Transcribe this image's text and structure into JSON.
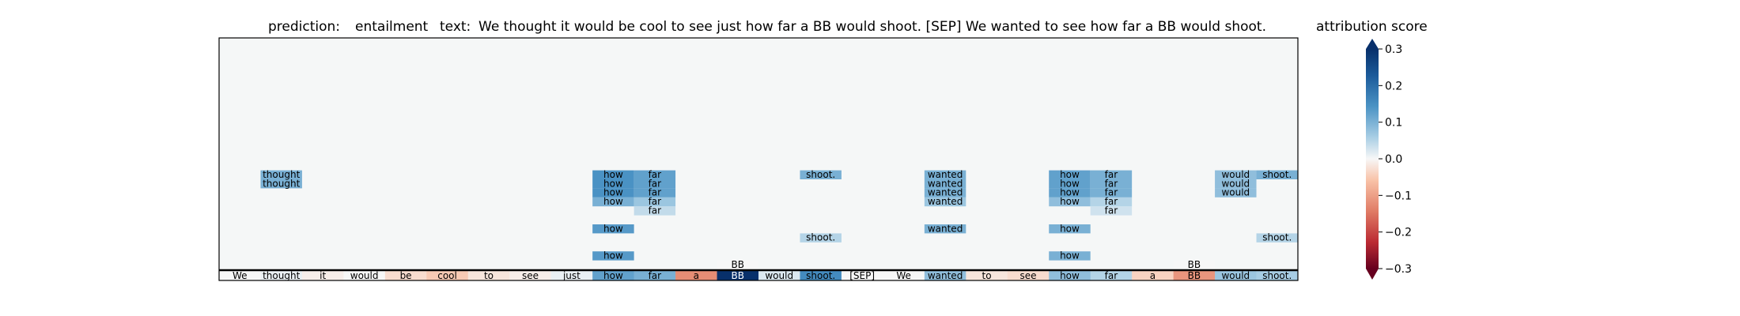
{
  "chart_data": {
    "type": "heatmap",
    "title": {
      "prediction_label": "prediction:",
      "prediction_value": "entailment",
      "text_label": "text:",
      "text_value": "We thought it would be cool to see just how far a BB would shoot. [SEP] We wanted to see how far a BB would shoot."
    },
    "tokens": [
      "We",
      "thought",
      "it",
      "would",
      "be",
      "cool",
      "to",
      "see",
      "just",
      "how",
      "far",
      "a",
      "BB",
      "would",
      "shoot.",
      "[SEP]",
      "We",
      "wanted",
      "to",
      "see",
      "how",
      "far",
      "a",
      "BB",
      "would",
      "shoot."
    ],
    "token_scores": [
      0.0,
      0.01,
      -0.01,
      0.0,
      -0.03,
      -0.05,
      -0.02,
      -0.01,
      0.01,
      0.12,
      0.1,
      -0.12,
      0.3,
      0.02,
      0.15,
      0.0,
      0.0,
      0.08,
      -0.02,
      -0.03,
      0.08,
      0.05,
      -0.04,
      -0.11,
      0.07,
      0.06
    ],
    "layer_rows": 26,
    "layer_cells": [
      {
        "row": 1,
        "col": 12,
        "label": "BB",
        "score": 0.0
      },
      {
        "row": 1,
        "col": 23,
        "label": "BB",
        "score": 0.0
      },
      {
        "row": 2,
        "col": 9,
        "label": "how",
        "score": 0.13
      },
      {
        "row": 2,
        "col": 20,
        "label": "how",
        "score": 0.1
      },
      {
        "row": 4,
        "col": 14,
        "label": "shoot.",
        "score": 0.05
      },
      {
        "row": 4,
        "col": 25,
        "label": "shoot.",
        "score": 0.05
      },
      {
        "row": 5,
        "col": 9,
        "label": "how",
        "score": 0.13
      },
      {
        "row": 5,
        "col": 17,
        "label": "wanted",
        "score": 0.1
      },
      {
        "row": 5,
        "col": 20,
        "label": "how",
        "score": 0.1
      },
      {
        "row": 7,
        "col": 10,
        "label": "far",
        "score": 0.04
      },
      {
        "row": 7,
        "col": 21,
        "label": "far",
        "score": 0.03
      },
      {
        "row": 8,
        "col": 9,
        "label": "how",
        "score": 0.1
      },
      {
        "row": 8,
        "col": 10,
        "label": "far",
        "score": 0.07
      },
      {
        "row": 8,
        "col": 17,
        "label": "wanted",
        "score": 0.07
      },
      {
        "row": 8,
        "col": 20,
        "label": "how",
        "score": 0.08
      },
      {
        "row": 8,
        "col": 21,
        "label": "far",
        "score": 0.05
      },
      {
        "row": 9,
        "col": 9,
        "label": "how",
        "score": 0.14
      },
      {
        "row": 9,
        "col": 10,
        "label": "far",
        "score": 0.12
      },
      {
        "row": 9,
        "col": 17,
        "label": "wanted",
        "score": 0.1
      },
      {
        "row": 9,
        "col": 20,
        "label": "how",
        "score": 0.12
      },
      {
        "row": 9,
        "col": 21,
        "label": "far",
        "score": 0.1
      },
      {
        "row": 9,
        "col": 24,
        "label": "would",
        "score": 0.08
      },
      {
        "row": 10,
        "col": 1,
        "label": "thought",
        "score": 0.1
      },
      {
        "row": 10,
        "col": 9,
        "label": "how",
        "score": 0.14
      },
      {
        "row": 10,
        "col": 10,
        "label": "far",
        "score": 0.12
      },
      {
        "row": 10,
        "col": 17,
        "label": "wanted",
        "score": 0.1
      },
      {
        "row": 10,
        "col": 20,
        "label": "how",
        "score": 0.12
      },
      {
        "row": 10,
        "col": 21,
        "label": "far",
        "score": 0.1
      },
      {
        "row": 10,
        "col": 24,
        "label": "would",
        "score": 0.08
      },
      {
        "row": 11,
        "col": 1,
        "label": "thought",
        "score": 0.1
      },
      {
        "row": 11,
        "col": 9,
        "label": "how",
        "score": 0.14
      },
      {
        "row": 11,
        "col": 10,
        "label": "far",
        "score": 0.12
      },
      {
        "row": 11,
        "col": 14,
        "label": "shoot.",
        "score": 0.1
      },
      {
        "row": 11,
        "col": 17,
        "label": "wanted",
        "score": 0.1
      },
      {
        "row": 11,
        "col": 20,
        "label": "how",
        "score": 0.12
      },
      {
        "row": 11,
        "col": 21,
        "label": "far",
        "score": 0.1
      },
      {
        "row": 11,
        "col": 24,
        "label": "would",
        "score": 0.08
      },
      {
        "row": 11,
        "col": 25,
        "label": "shoot.",
        "score": 0.1
      }
    ],
    "colorbar": {
      "label": "attribution score",
      "min": -0.3,
      "max": 0.3,
      "ticks": [
        {
          "value": 0.3,
          "label": "0.3"
        },
        {
          "value": 0.2,
          "label": "0.2"
        },
        {
          "value": 0.1,
          "label": "0.1"
        },
        {
          "value": 0.0,
          "label": "0.0"
        },
        {
          "value": -0.1,
          "label": "−0.1"
        },
        {
          "value": -0.2,
          "label": "−0.2"
        },
        {
          "value": -0.3,
          "label": "−0.3"
        }
      ]
    }
  },
  "colors": {
    "background": "#f5f7f7",
    "frame": "#000000",
    "text": "#000000"
  }
}
